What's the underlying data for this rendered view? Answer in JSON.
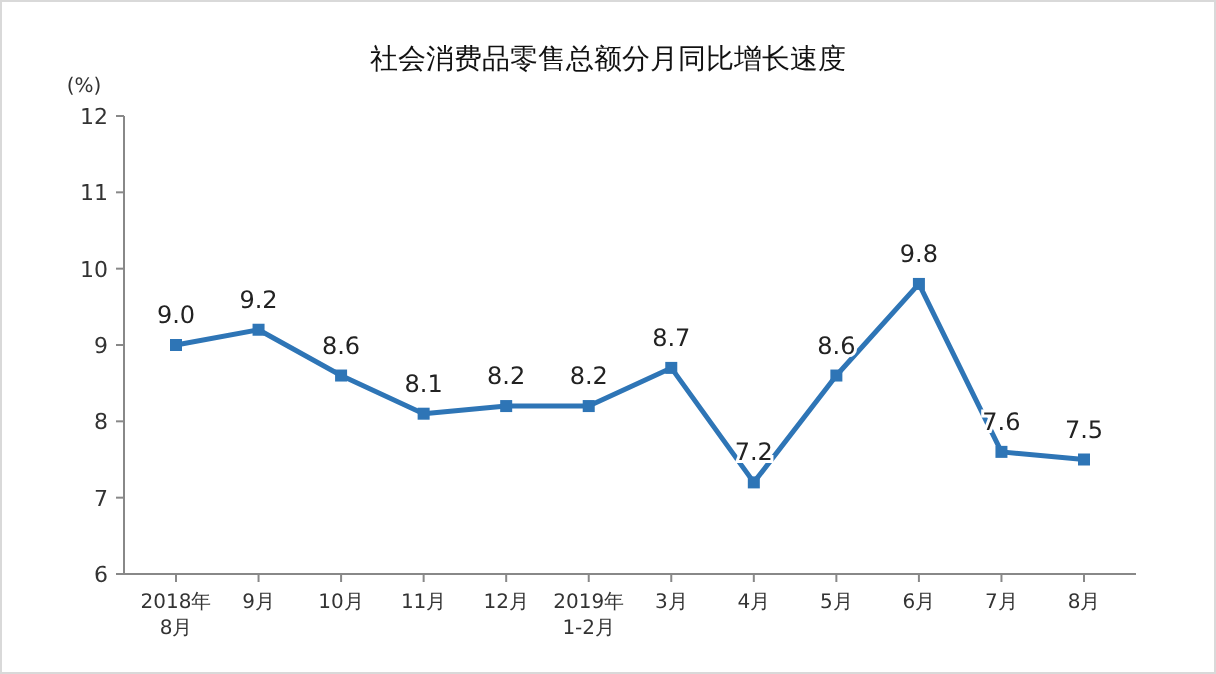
{
  "chart_data": {
    "type": "line",
    "title": "社会消费品零售总额分月同比增长速度",
    "ylabel": "(%)",
    "categories": [
      "2018年\n8月",
      "9月",
      "10月",
      "11月",
      "12月",
      "2019年\n1-2月",
      "3月",
      "4月",
      "5月",
      "6月",
      "7月",
      "8月"
    ],
    "series": [
      {
        "color": "#2e75b6",
        "values": [
          9.0,
          9.2,
          8.6,
          8.1,
          8.2,
          8.2,
          8.7,
          7.2,
          8.6,
          9.8,
          7.6,
          7.5
        ]
      }
    ],
    "ylim": [
      6,
      12
    ],
    "yticks": [
      6,
      7,
      8,
      9,
      10,
      11,
      12
    ],
    "value_labels": [
      "9.0",
      "9.2",
      "8.6",
      "8.1",
      "8.2",
      "8.2",
      "8.7",
      "7.2",
      "8.6",
      "9.8",
      "7.6",
      "7.5"
    ],
    "marker": "square",
    "grid": false
  }
}
